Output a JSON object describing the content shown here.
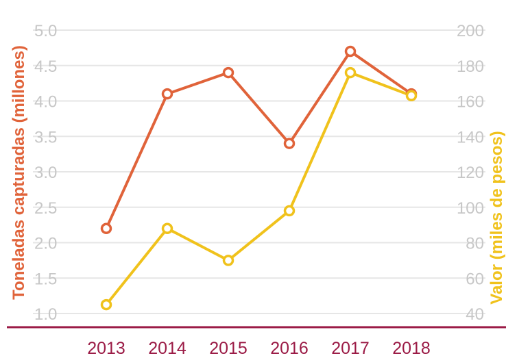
{
  "chart_data": {
    "type": "line",
    "title": "",
    "categories": [
      "2013",
      "2014",
      "2015",
      "2016",
      "2017",
      "2018"
    ],
    "ylabel": "Toneladas capturadas (millones)",
    "y2label": "Valor (miles de pesos)",
    "ylim": [
      1.0,
      5.0
    ],
    "y2lim": [
      40,
      200
    ],
    "yticks": [
      "1.0",
      "1.5",
      "2.0",
      "2.5",
      "3.0",
      "3.5",
      "4.0",
      "4.5",
      "5.0"
    ],
    "y2ticks": [
      "40",
      "60",
      "80",
      "100",
      "120",
      "140",
      "160",
      "180",
      "200"
    ],
    "grid": true,
    "legend": "none",
    "series": [
      {
        "axis": "left",
        "color": "#e0633a",
        "values": [
          2.2,
          4.1,
          4.4,
          3.4,
          4.7,
          4.1
        ]
      },
      {
        "axis": "right",
        "color": "#f0c21c",
        "values": [
          45,
          88,
          70,
          98,
          176,
          163
        ]
      }
    ],
    "colors": {
      "grid": "#e6e6e6",
      "tick_text": "#c7c7c7",
      "x_axis": "#9b1b46",
      "left_title": "#e0633a",
      "right_title": "#f0c21c"
    }
  }
}
